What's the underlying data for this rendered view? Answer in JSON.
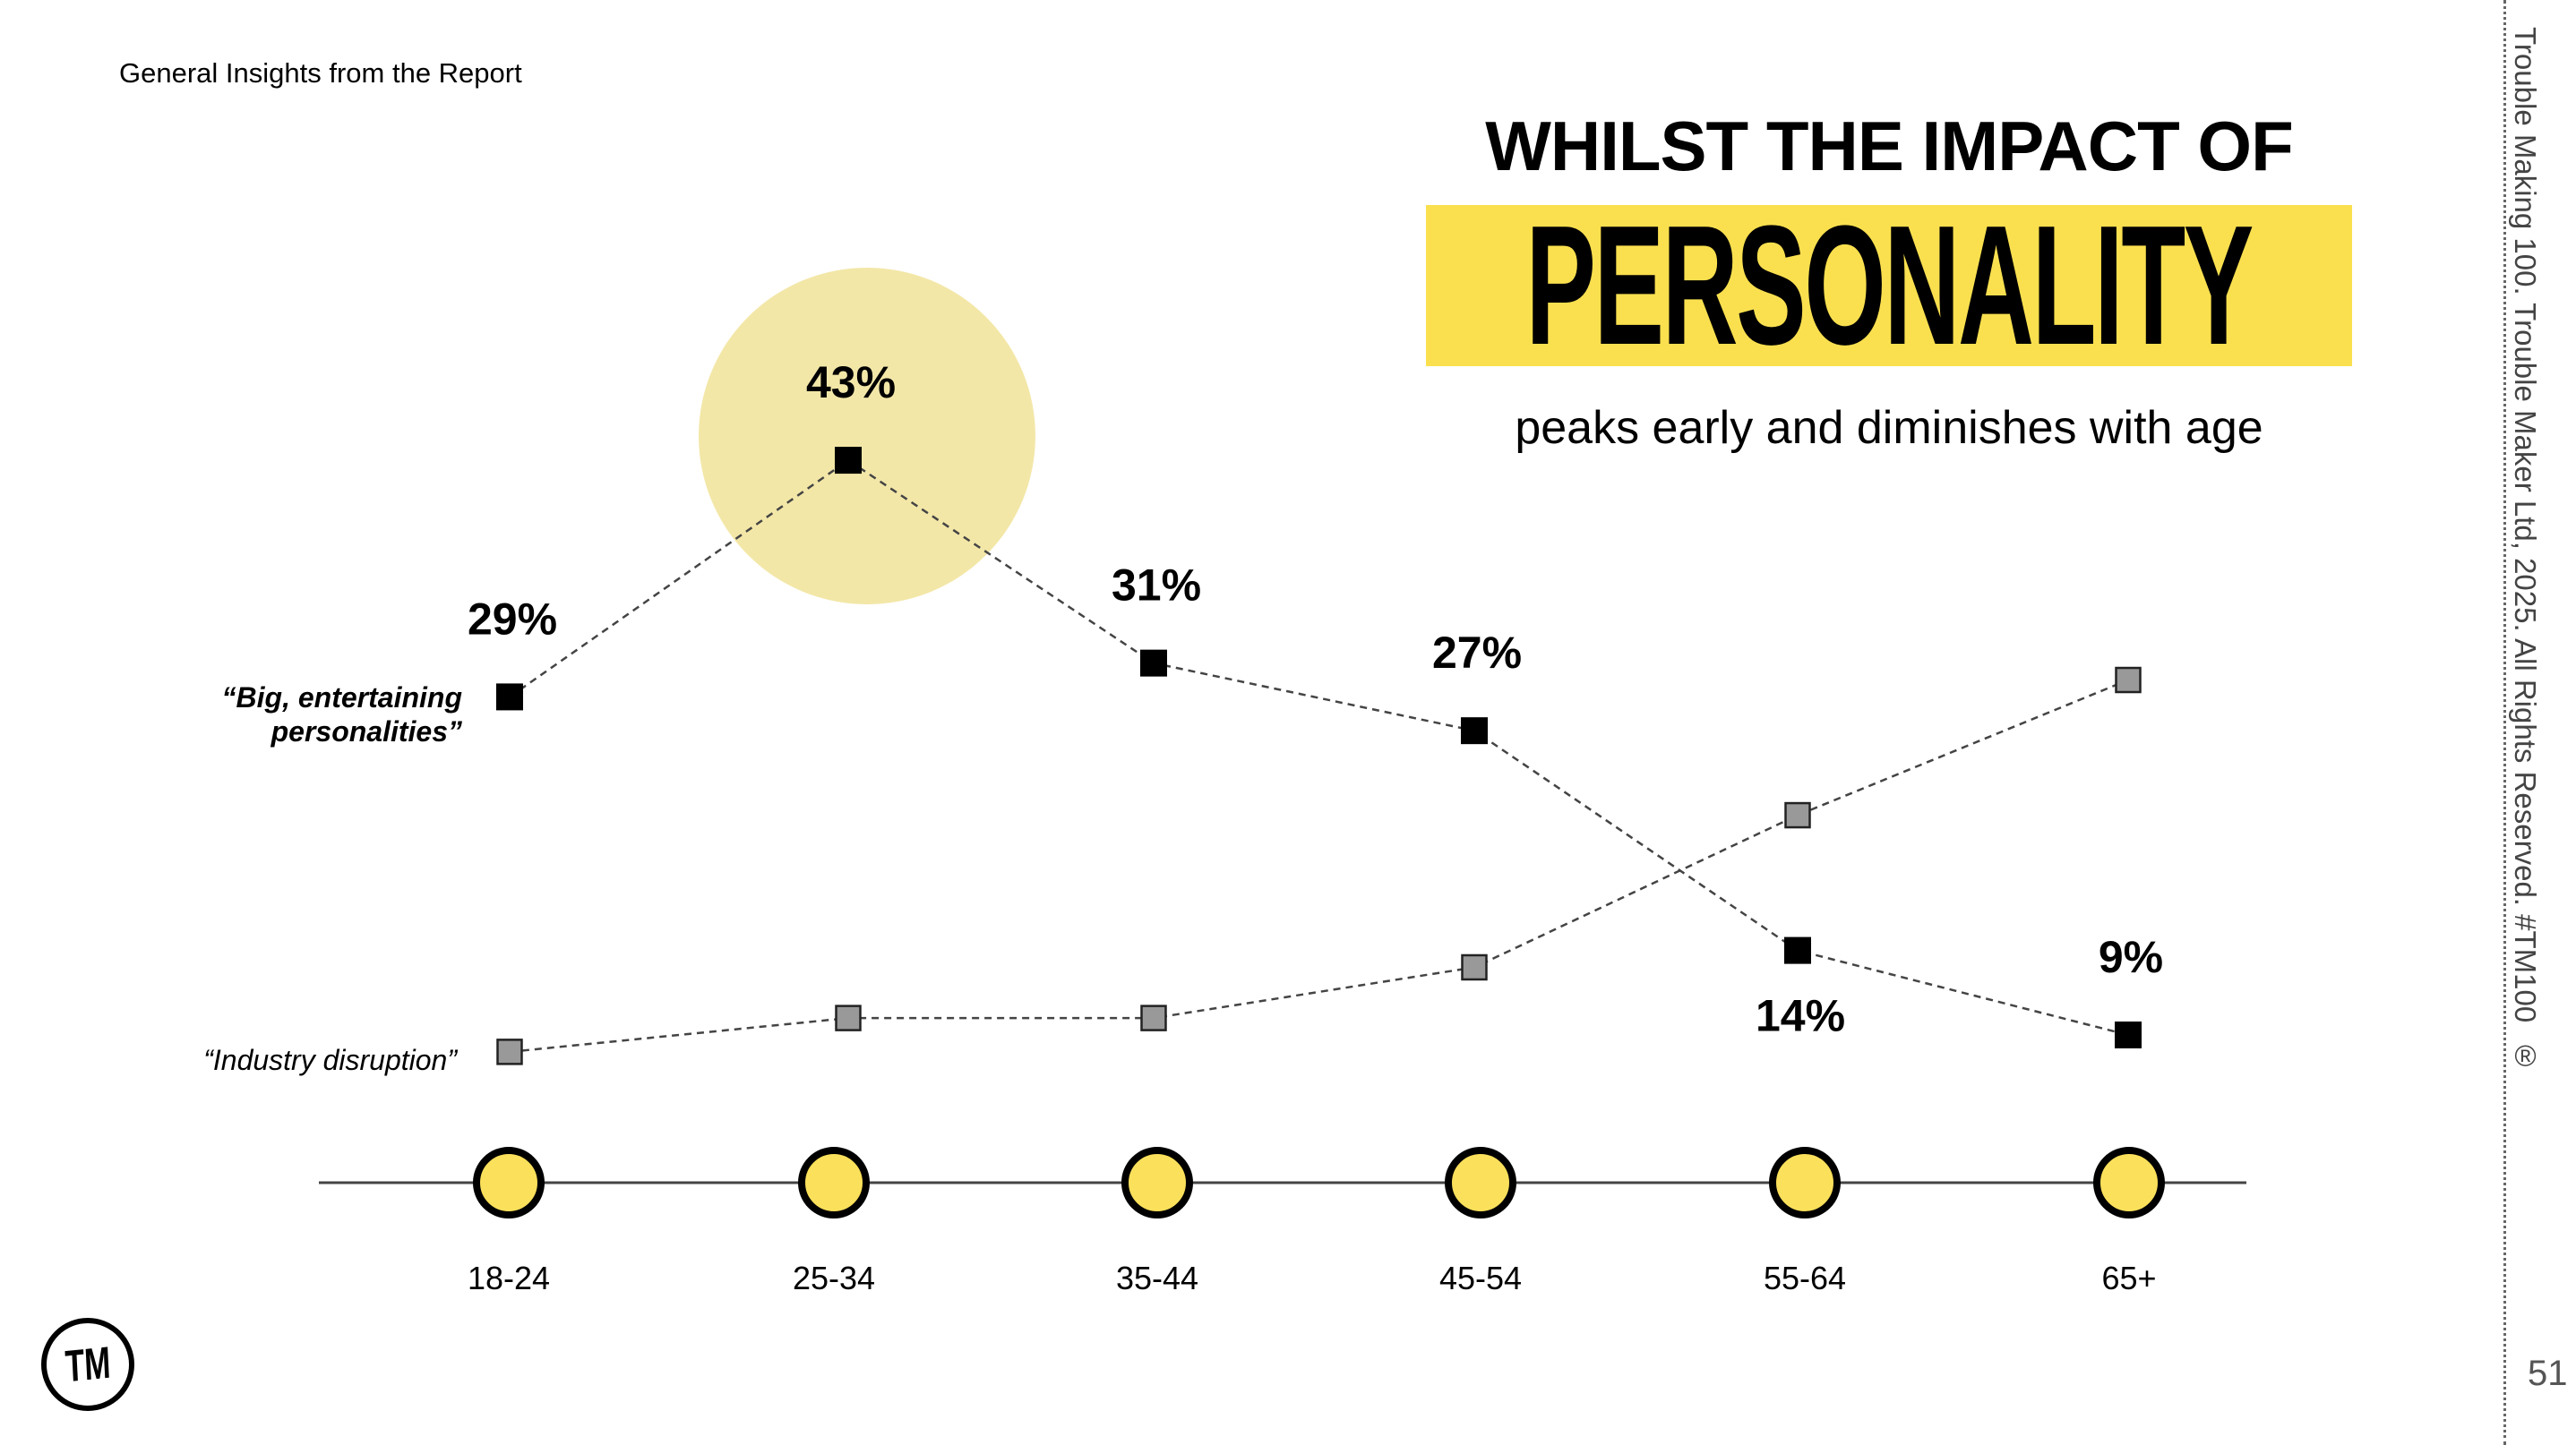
{
  "header": {
    "section": "General Insights from the Report"
  },
  "headline": {
    "line1": "WHILST THE IMPACT OF",
    "highlight": "PERSONALITY",
    "line2": "peaks early and diminishes with age"
  },
  "footer": {
    "copyright": "Trouble Making 100. Trouble Maker Ltd, 2025. All Rights Reserved. #TM100",
    "registered": "®",
    "page": "51",
    "logo": "TM"
  },
  "colors": {
    "accent": "#fae04f",
    "highlight": "#f3e7a8",
    "grey_marker": "#999999"
  },
  "chart_data": {
    "type": "line",
    "categories": [
      "18-24",
      "25-34",
      "35-44",
      "45-54",
      "55-64",
      "65+"
    ],
    "series": [
      {
        "name": "“Big, entertaining personalities”",
        "values": [
          29,
          43,
          31,
          27,
          14,
          9
        ],
        "labels": [
          "29%",
          "43%",
          "31%",
          "27%",
          "14%",
          "9%"
        ],
        "color": "#000000"
      },
      {
        "name": "“Industry disruption”",
        "values": [
          8,
          10,
          10,
          13,
          22,
          30
        ],
        "color": "#999999"
      }
    ],
    "highlight_category": "25-34",
    "ylim": [
      0,
      50
    ],
    "grid": false
  }
}
